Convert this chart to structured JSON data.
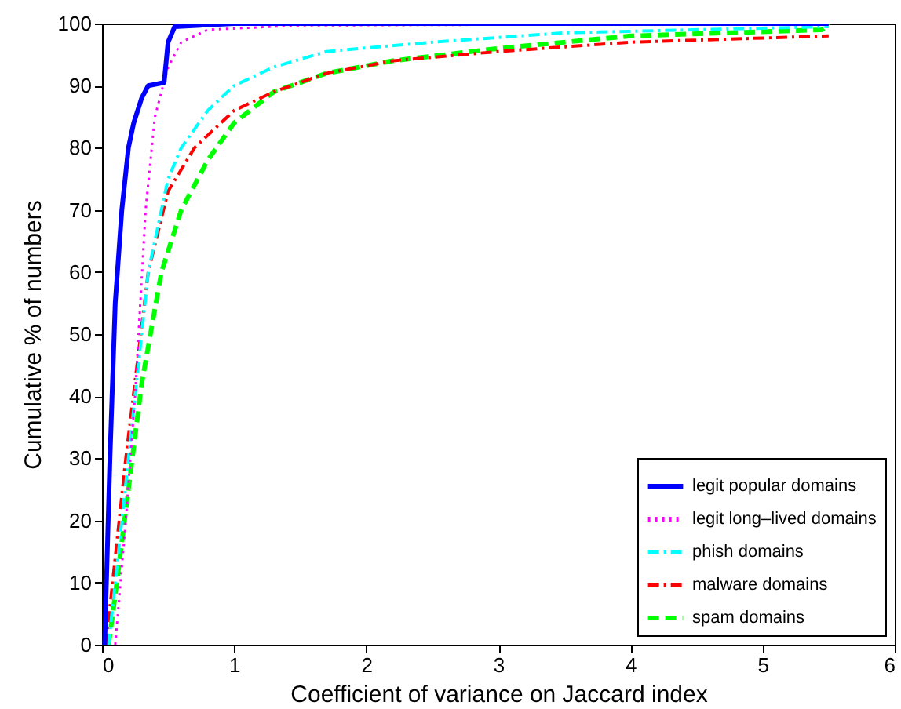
{
  "chart_data": {
    "type": "line",
    "xlabel": "Coefficient of variance on Jaccard index",
    "ylabel": "Cumulative % of numbers",
    "xlim": [
      0,
      6
    ],
    "ylim": [
      0,
      100
    ],
    "xticks": [
      0,
      1,
      2,
      3,
      4,
      5,
      6
    ],
    "yticks": [
      0,
      10,
      20,
      30,
      40,
      50,
      60,
      70,
      80,
      90,
      100
    ],
    "grid": false,
    "legend": "bottom right",
    "marker": "none",
    "series": [
      {
        "name": "legit popular domains",
        "color": "#0000ff",
        "line_style": "solid",
        "x": [
          0.02,
          0.06,
          0.1,
          0.15,
          0.2,
          0.24,
          0.3,
          0.35,
          0.47,
          0.5,
          0.55,
          1.0,
          5.5
        ],
        "values": [
          0,
          30,
          55,
          70,
          80,
          84,
          88,
          90,
          90.5,
          97,
          99.5,
          100,
          100
        ]
      },
      {
        "name": "legit long–lived domains",
        "color": "#ff00ff",
        "line_style": "dotted",
        "x": [
          0.1,
          0.18,
          0.25,
          0.33,
          0.4,
          0.5,
          0.6,
          0.8,
          1.5,
          5.5
        ],
        "values": [
          0,
          20,
          40,
          70,
          85,
          93,
          97,
          99,
          99.7,
          100
        ]
      },
      {
        "name": "phish domains",
        "color": "#00ffff",
        "line_style": "dashdot",
        "x": [
          0.05,
          0.1,
          0.2,
          0.35,
          0.5,
          0.6,
          0.8,
          1.0,
          1.3,
          1.7,
          2.5,
          3.5,
          5.5
        ],
        "values": [
          0,
          10,
          30,
          60,
          75,
          80,
          86,
          90,
          93,
          95.5,
          97,
          98.5,
          99.5
        ]
      },
      {
        "name": "malware domains",
        "color": "#ff0000",
        "line_style": "dashdot",
        "x": [
          0.03,
          0.08,
          0.18,
          0.35,
          0.5,
          0.7,
          1.0,
          1.3,
          1.7,
          2.2,
          3.0,
          4.0,
          5.5
        ],
        "values": [
          0,
          10,
          30,
          60,
          73,
          80,
          86,
          89,
          92,
          94,
          95.5,
          97,
          98
        ]
      },
      {
        "name": "spam domains",
        "color": "#00ff00",
        "line_style": "dashed",
        "x": [
          0.05,
          0.1,
          0.2,
          0.3,
          0.45,
          0.6,
          0.8,
          1.0,
          1.3,
          1.7,
          2.2,
          3.0,
          4.0,
          5.45,
          5.5
        ],
        "values": [
          0,
          8,
          25,
          42,
          60,
          70,
          78,
          84,
          89,
          92,
          94,
          96,
          98,
          99,
          100
        ]
      }
    ]
  }
}
